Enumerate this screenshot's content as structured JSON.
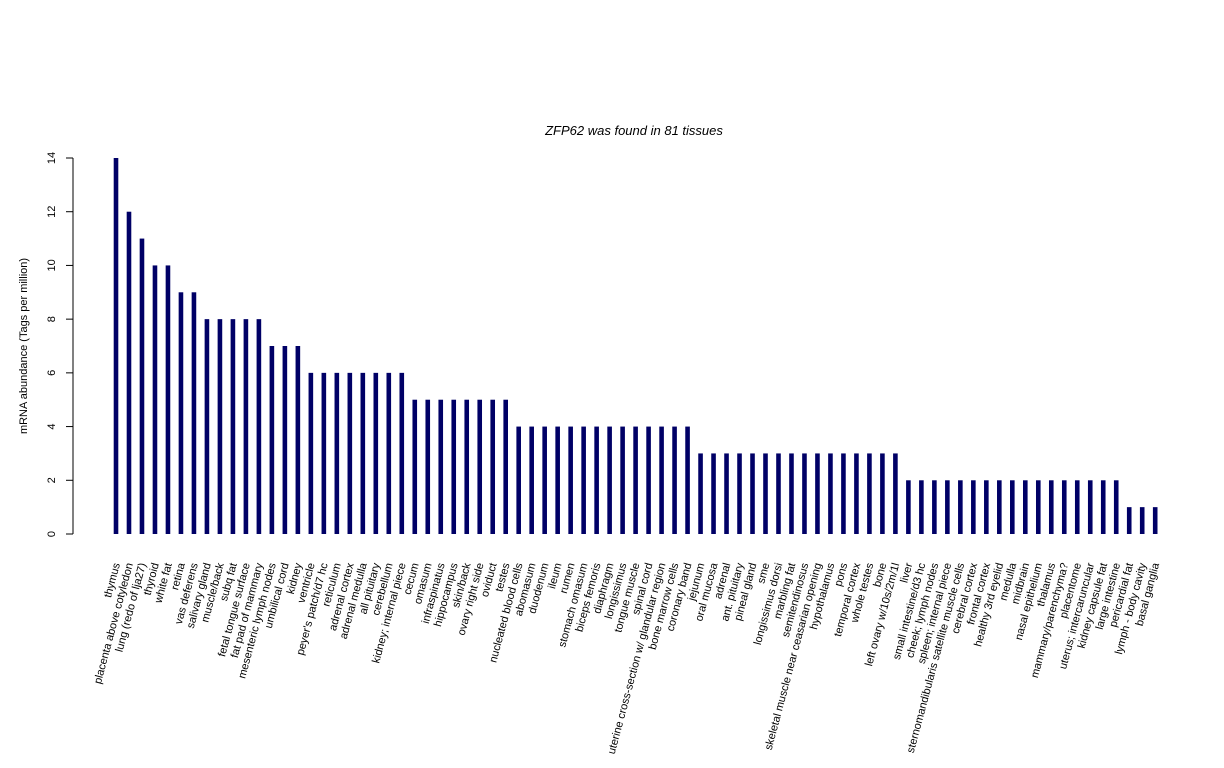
{
  "chart_data": {
    "type": "bar",
    "title": "ZFP62  was found in  81  tissues",
    "xlabel": "",
    "ylabel": "mRNA abundance (Tags per million)",
    "ylim": [
      0,
      14
    ],
    "yticks": [
      0,
      2,
      4,
      6,
      8,
      10,
      12,
      14
    ],
    "bar_color": "#000066",
    "grid": false,
    "categories": [
      "thymus",
      "placenta above cotyledon",
      "lung (redo of lja27)",
      "thyroid",
      "white fat",
      "retina",
      "vas deferens",
      "salivary gland",
      "muscle/back",
      "subq fat",
      "fetal tongue surface",
      "fat pad of mammary",
      "mesenteric lymph nodes",
      "umbilical cord",
      "kidney",
      "ventricle",
      "peyer's patch/d7 hc",
      "reticulum",
      "adrenal cortex",
      "adrenal medulla",
      "all pituitary",
      "cerebellum",
      "kidney; internal piece",
      "cecum",
      "omasum",
      "infraspinatus",
      "hippocampus",
      "skin/back",
      "ovary right side",
      "oviduct",
      "testes",
      "nucleated blood cells",
      "abomasum",
      "duodenum",
      "ileum",
      "rumen",
      "stomach omasum",
      "biceps femoris",
      "diaphragm",
      "longissimus",
      "tongue muscle",
      "spinal cord",
      "uterine cross-section w/ glandular region",
      "bone marrow cells",
      "coronary band",
      "jejunum",
      "oral mucosa",
      "adrenal",
      "ant. pituitary",
      "pineal gland",
      "sme",
      "longissimus dorsi",
      "marbling fat",
      "semitendinosus",
      "skeletal muscle near ceasarian opening",
      "hypothalamus",
      "pons",
      "temporal cortex",
      "whole testes",
      "bone",
      "left ovary w/10s/2m/1l",
      "liver",
      "small intestine/d3 hc",
      "cheek; lymph nodes",
      "spleen; internal piece",
      "sternomandibularis satellite muscle cells",
      "cerebral cortex",
      "frontal cortex",
      "healthy 3rd eyelid",
      "medulla",
      "midbrain",
      "nasal epithelium",
      "thalamus",
      "mammary/parenchyma?",
      "placentome",
      "uterus; intercaruncular",
      "kidney capsule fat",
      "large intestine",
      "pericardial fat",
      "lymph - body cavity",
      "basal ganglia"
    ],
    "values": [
      14,
      12,
      11,
      10,
      10,
      9,
      9,
      8,
      8,
      8,
      8,
      8,
      7,
      7,
      7,
      6,
      6,
      6,
      6,
      6,
      6,
      6,
      6,
      5,
      5,
      5,
      5,
      5,
      5,
      5,
      5,
      4,
      4,
      4,
      4,
      4,
      4,
      4,
      4,
      4,
      4,
      4,
      4,
      4,
      4,
      3,
      3,
      3,
      3,
      3,
      3,
      3,
      3,
      3,
      3,
      3,
      3,
      3,
      3,
      3,
      3,
      2,
      2,
      2,
      2,
      2,
      2,
      2,
      2,
      2,
      2,
      2,
      2,
      2,
      2,
      2,
      2,
      2,
      1,
      1,
      1
    ]
  }
}
